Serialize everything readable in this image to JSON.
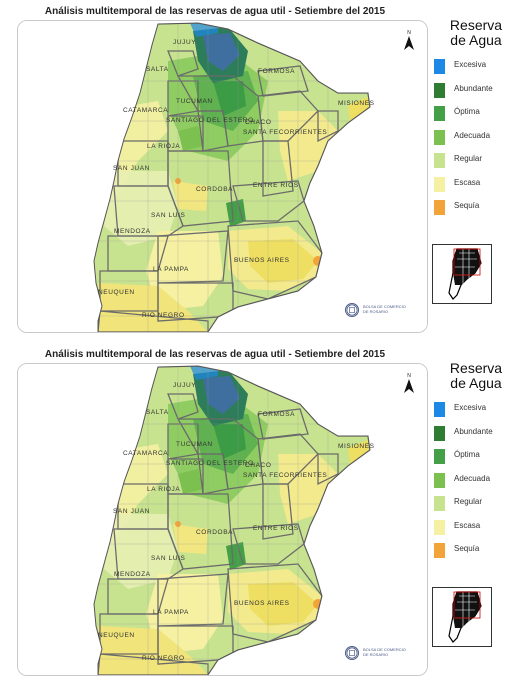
{
  "title": "Análisis multitemporal de las reservas de agua util - Setiembre del 2015",
  "legend": {
    "title_line1": "Reserva",
    "title_line2": "de Agua",
    "items": [
      {
        "label": "Excesiva",
        "color": "#1e88e5"
      },
      {
        "label": "Abundante",
        "color": "#2e7d32"
      },
      {
        "label": "Óptima",
        "color": "#43a047"
      },
      {
        "label": "Adecuada",
        "color": "#7cc04f"
      },
      {
        "label": "Regular",
        "color": "#c8e38f"
      },
      {
        "label": "Escasa",
        "color": "#f5f0a2"
      },
      {
        "label": "Sequía",
        "color": "#f2a33a"
      }
    ]
  },
  "north_label": "N",
  "logo_text_line1": "BOLSA DE COMERCIO",
  "logo_text_line2": "DE ROSARIO",
  "provinces": {
    "jujuy": "JUJUY",
    "salta": "SALTA",
    "formosa": "FORMOSA",
    "tucuman": "TUCUMAN",
    "catamarca": "CATAMARCA",
    "chaco": "CHACO",
    "misiones": "MISIONES",
    "santiago": "SANTIAGO DEL ESTERO",
    "corrientes": "SANTA FECORRIENTES",
    "la_rioja": "LA RIOJA",
    "san_juan": "SAN JUAN",
    "cordoba": "CORDOBA",
    "entre_rios": "ENTRE RIOS",
    "san_luis": "SAN LUIS",
    "mendoza": "MENDOZA",
    "la_pampa": "LA PAMPA",
    "buenos_aires": "BUENOS AIRES",
    "neuquen": "NEUQUEN",
    "rio_negro": "RIO NEGRO"
  }
}
